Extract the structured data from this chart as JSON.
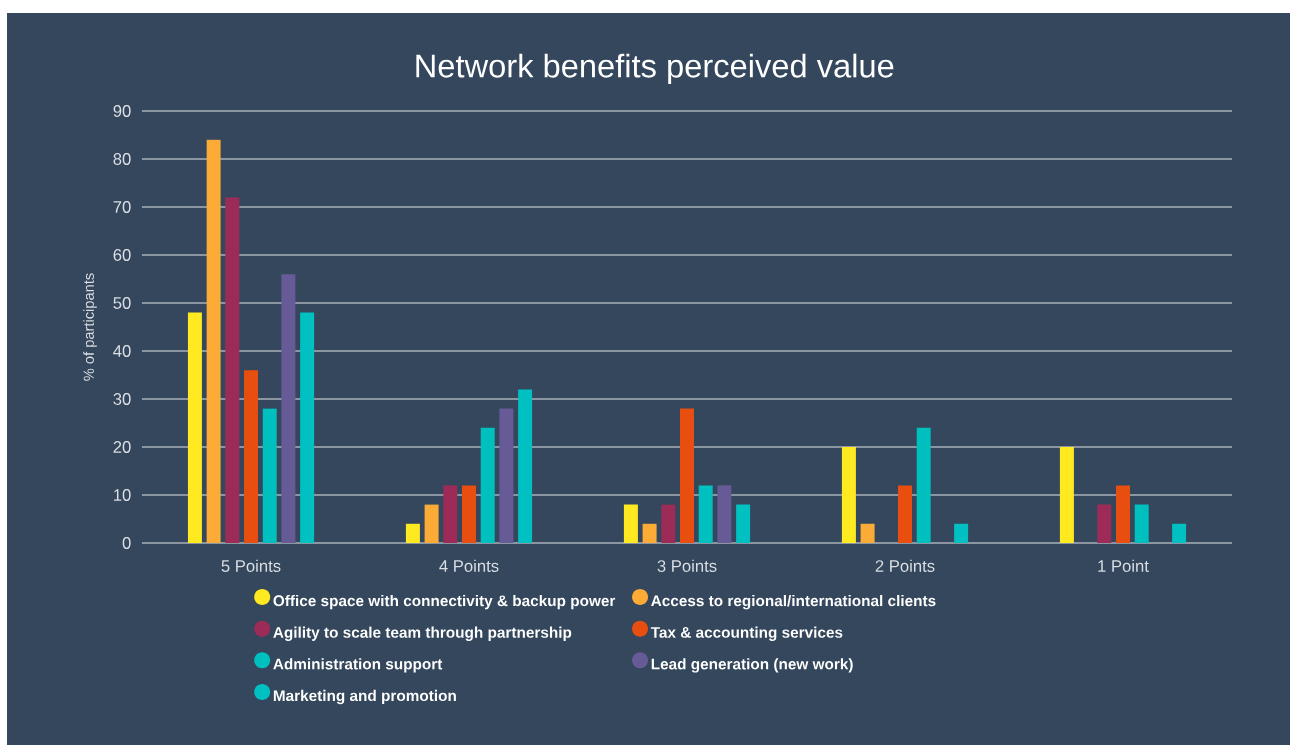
{
  "chart_data": {
    "type": "bar",
    "title": "Network benefits perceived value",
    "ylabel": "% of participants",
    "categories": [
      "5 Points",
      "4 Points",
      "3 Points",
      "2 Points",
      "1 Point"
    ],
    "series": [
      {
        "name": "Office space with connectivity & backup power",
        "color": "#ffe920",
        "values": [
          48,
          4,
          8,
          20,
          20
        ]
      },
      {
        "name": "Access to regional/international clients",
        "color": "#fbab36",
        "values": [
          84,
          8,
          4,
          4,
          null
        ]
      },
      {
        "name": "Agility to scale team through partnership",
        "color": "#9c2c57",
        "values": [
          72,
          12,
          8,
          null,
          8
        ]
      },
      {
        "name": "Tax & accounting services",
        "color": "#e84e0f",
        "values": [
          36,
          12,
          28,
          12,
          12
        ]
      },
      {
        "name": "Administration support",
        "color": "#00bfbf",
        "values": [
          28,
          24,
          12,
          24,
          8
        ]
      },
      {
        "name": "Lead generation (new work)",
        "color": "#665b97",
        "values": [
          56,
          28,
          12,
          null,
          null
        ]
      },
      {
        "name": "Marketing and promotion",
        "color": "#00c0c1",
        "values": [
          48,
          32,
          8,
          4,
          4
        ]
      }
    ],
    "ylim": [
      0,
      90
    ],
    "yticks": [
      0,
      10,
      20,
      30,
      40,
      50,
      60,
      70,
      80,
      90
    ],
    "grid": "y",
    "legend": "bottom"
  }
}
